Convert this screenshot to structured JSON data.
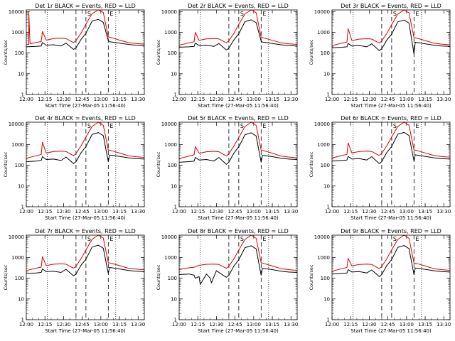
{
  "colors": {
    "events": "#000000",
    "lld": "#dd0000",
    "background": "#ffffff",
    "axis": "#000000"
  },
  "shared": {
    "ylabel": "Counts/sec",
    "xlabel": "Start Time (27-Mar-05 11:56:40)",
    "title_suffix": "BLACK = Events, RED = LLD",
    "x_ticks": [
      "12:00",
      "12:15",
      "12:30",
      "12:45",
      "13:00",
      "13:15",
      "13:30"
    ],
    "y_ticks": [
      "1",
      "10",
      "100",
      "1000",
      "10000"
    ],
    "markers": [
      {
        "label": "S",
        "time": "12:48",
        "style": "dashed"
      },
      {
        "label": "E",
        "time": "13:06",
        "style": "dashed"
      }
    ],
    "dashed_line_time": "12:40",
    "dotted_line_times": [
      "12:17",
      "13:12"
    ]
  },
  "chart_data": [
    {
      "type": "line",
      "title": "Det 1r BLACK = Events, RED = LLD",
      "xlim": [
        "12:00",
        "13:35"
      ],
      "ylim": [
        1,
        12000
      ],
      "yscale": "log",
      "series": [
        {
          "name": "Events",
          "x": [
            "12:00",
            "12:08",
            "12:12",
            "12:13",
            "12:16",
            "12:22",
            "12:28",
            "12:32",
            "12:38",
            "12:40",
            "12:44",
            "12:48",
            "12:53",
            "12:58",
            "13:02",
            "13:06",
            "13:07",
            "13:10",
            "13:15",
            "13:22",
            "13:28",
            "13:35"
          ],
          "values": [
            200,
            210,
            220,
            320,
            240,
            250,
            220,
            300,
            150,
            180,
            450,
            900,
            3500,
            4200,
            3000,
            400,
            350,
            330,
            300,
            260,
            240,
            230
          ]
        },
        {
          "name": "LLD",
          "x": [
            "12:00",
            "12:02",
            "12:02",
            "12:03",
            "12:08",
            "12:12",
            "12:13",
            "12:16",
            "12:22",
            "12:28",
            "12:32",
            "12:38",
            "12:40",
            "12:44",
            "12:48",
            "12:53",
            "12:58",
            "13:02",
            "13:06",
            "13:10",
            "13:15",
            "13:22",
            "13:28",
            "13:35"
          ],
          "values": [
            250,
            260,
            10000,
            280,
            320,
            360,
            1100,
            420,
            500,
            520,
            500,
            320,
            400,
            900,
            2500,
            8000,
            12000,
            9000,
            600,
            520,
            420,
            320,
            290,
            270
          ]
        }
      ]
    },
    {
      "type": "line",
      "title": "Det 2r BLACK = Events, RED = LLD",
      "xlim": [
        "12:00",
        "13:35"
      ],
      "ylim": [
        1,
        12000
      ],
      "yscale": "log",
      "series": [
        {
          "name": "Events",
          "x": [
            "12:00",
            "12:08",
            "12:12",
            "12:13",
            "12:16",
            "12:22",
            "12:28",
            "12:32",
            "12:38",
            "12:40",
            "12:44",
            "12:48",
            "12:53",
            "12:58",
            "13:02",
            "13:06",
            "13:07",
            "13:10",
            "13:15",
            "13:22",
            "13:28",
            "13:35"
          ],
          "values": [
            190,
            200,
            210,
            300,
            230,
            240,
            210,
            290,
            140,
            170,
            430,
            850,
            3300,
            4000,
            2900,
            380,
            340,
            320,
            290,
            250,
            230,
            220
          ]
        },
        {
          "name": "LLD",
          "x": [
            "12:00",
            "12:08",
            "12:12",
            "12:13",
            "12:16",
            "12:22",
            "12:28",
            "12:32",
            "12:38",
            "12:40",
            "12:44",
            "12:48",
            "12:53",
            "12:58",
            "13:02",
            "13:06",
            "13:10",
            "13:15",
            "13:22",
            "13:28",
            "13:35"
          ],
          "values": [
            240,
            310,
            350,
            1000,
            410,
            480,
            500,
            480,
            310,
            390,
            880,
            2400,
            7800,
            12000,
            8800,
            580,
            500,
            410,
            310,
            280,
            260
          ]
        }
      ]
    },
    {
      "type": "line",
      "title": "Det 3r BLACK = Events, RED = LLD",
      "xlim": [
        "12:00",
        "13:35"
      ],
      "ylim": [
        1,
        12000
      ],
      "yscale": "log",
      "series": [
        {
          "name": "Events",
          "x": [
            "12:00",
            "12:08",
            "12:12",
            "12:13",
            "12:16",
            "12:22",
            "12:28",
            "12:32",
            "12:38",
            "12:40",
            "12:44",
            "12:48",
            "12:53",
            "12:58",
            "13:02",
            "13:06",
            "13:07",
            "13:10",
            "13:15",
            "13:22",
            "13:28",
            "13:35"
          ],
          "values": [
            180,
            190,
            200,
            290,
            220,
            230,
            200,
            280,
            130,
            160,
            420,
            820,
            3200,
            3900,
            2800,
            90,
            330,
            310,
            280,
            240,
            220,
            210
          ]
        },
        {
          "name": "LLD",
          "x": [
            "12:00",
            "12:08",
            "12:12",
            "12:13",
            "12:16",
            "12:22",
            "12:28",
            "12:32",
            "12:38",
            "12:40",
            "12:44",
            "12:48",
            "12:53",
            "12:58",
            "13:02",
            "13:06",
            "13:10",
            "13:15",
            "13:22",
            "13:28",
            "13:35"
          ],
          "values": [
            230,
            300,
            340,
            1500,
            400,
            470,
            490,
            470,
            300,
            380,
            860,
            2300,
            7600,
            12000,
            8600,
            560,
            490,
            400,
            300,
            270,
            250
          ]
        }
      ]
    },
    {
      "type": "line",
      "title": "Det 4r BLACK = Events, RED = LLD",
      "xlim": [
        "12:00",
        "13:35"
      ],
      "ylim": [
        1,
        12000
      ],
      "yscale": "log",
      "series": [
        {
          "name": "Events",
          "x": [
            "12:00",
            "12:08",
            "12:12",
            "12:13",
            "12:16",
            "12:22",
            "12:28",
            "12:32",
            "12:38",
            "12:40",
            "12:44",
            "12:48",
            "12:53",
            "12:58",
            "13:02",
            "13:06",
            "13:07",
            "13:10",
            "13:15",
            "13:22",
            "13:28",
            "13:35"
          ],
          "values": [
            150,
            160,
            170,
            260,
            190,
            200,
            170,
            250,
            120,
            150,
            400,
            800,
            3100,
            3800,
            2700,
            150,
            310,
            300,
            270,
            230,
            210,
            200
          ]
        },
        {
          "name": "LLD",
          "x": [
            "12:00",
            "12:08",
            "12:12",
            "12:13",
            "12:16",
            "12:22",
            "12:28",
            "12:32",
            "12:38",
            "12:40",
            "12:44",
            "12:48",
            "12:53",
            "12:58",
            "13:02",
            "13:06",
            "13:10",
            "13:15",
            "13:22",
            "13:28",
            "13:35"
          ],
          "values": [
            220,
            290,
            330,
            1300,
            390,
            460,
            480,
            460,
            290,
            370,
            850,
            2300,
            7500,
            12000,
            8500,
            550,
            480,
            390,
            290,
            260,
            240
          ]
        }
      ]
    },
    {
      "type": "line",
      "title": "Det 5r BLACK = Events, RED = LLD",
      "xlim": [
        "12:00",
        "13:35"
      ],
      "ylim": [
        1,
        12000
      ],
      "yscale": "log",
      "series": [
        {
          "name": "Events",
          "x": [
            "12:00",
            "12:08",
            "12:12",
            "12:13",
            "12:16",
            "12:22",
            "12:28",
            "12:32",
            "12:38",
            "12:40",
            "12:44",
            "12:48",
            "12:53",
            "12:58",
            "13:02",
            "13:06",
            "13:07",
            "13:10",
            "13:15",
            "13:22",
            "13:28",
            "13:35"
          ],
          "values": [
            140,
            150,
            160,
            240,
            180,
            190,
            160,
            240,
            110,
            140,
            380,
            780,
            3000,
            3700,
            2600,
            140,
            300,
            290,
            260,
            220,
            200,
            190
          ]
        },
        {
          "name": "LLD",
          "x": [
            "12:00",
            "12:08",
            "12:12",
            "12:13",
            "12:16",
            "12:22",
            "12:28",
            "12:32",
            "12:38",
            "12:40",
            "12:44",
            "12:48",
            "12:53",
            "12:58",
            "13:02",
            "13:06",
            "13:10",
            "13:15",
            "13:22",
            "13:28",
            "13:35"
          ],
          "values": [
            210,
            280,
            320,
            800,
            380,
            450,
            470,
            450,
            280,
            360,
            840,
            2200,
            7400,
            12000,
            8400,
            540,
            470,
            380,
            280,
            250,
            230
          ]
        }
      ]
    },
    {
      "type": "line",
      "title": "Det 6r BLACK = Events, RED = LLD",
      "xlim": [
        "12:00",
        "13:35"
      ],
      "ylim": [
        1,
        12000
      ],
      "yscale": "log",
      "series": [
        {
          "name": "Events",
          "x": [
            "12:00",
            "12:08",
            "12:12",
            "12:13",
            "12:16",
            "12:22",
            "12:28",
            "12:32",
            "12:38",
            "12:40",
            "12:44",
            "12:48",
            "12:53",
            "12:58",
            "13:02",
            "13:06",
            "13:07",
            "13:10",
            "13:15",
            "13:22",
            "13:28",
            "13:35"
          ],
          "values": [
            160,
            170,
            180,
            270,
            200,
            210,
            180,
            260,
            120,
            150,
            410,
            810,
            3150,
            3850,
            2750,
            160,
            320,
            300,
            270,
            230,
            210,
            200
          ]
        },
        {
          "name": "LLD",
          "x": [
            "12:00",
            "12:08",
            "12:12",
            "12:13",
            "12:16",
            "12:22",
            "12:28",
            "12:32",
            "12:38",
            "12:40",
            "12:44",
            "12:48",
            "12:53",
            "12:58",
            "13:02",
            "13:06",
            "13:10",
            "13:15",
            "13:22",
            "13:28",
            "13:35"
          ],
          "values": [
            225,
            295,
            335,
            1200,
            395,
            465,
            485,
            465,
            295,
            375,
            855,
            2300,
            7550,
            12000,
            8550,
            555,
            485,
            395,
            295,
            265,
            245
          ]
        }
      ]
    },
    {
      "type": "line",
      "title": "Det 7r BLACK = Events, RED = LLD",
      "xlim": [
        "12:00",
        "13:35"
      ],
      "ylim": [
        1,
        12000
      ],
      "yscale": "log",
      "series": [
        {
          "name": "Events",
          "x": [
            "12:00",
            "12:08",
            "12:12",
            "12:13",
            "12:16",
            "12:22",
            "12:28",
            "12:32",
            "12:38",
            "12:40",
            "12:44",
            "12:48",
            "12:53",
            "12:58",
            "13:02",
            "13:06",
            "13:07",
            "13:10",
            "13:15",
            "13:22",
            "13:28",
            "13:35"
          ],
          "values": [
            170,
            180,
            190,
            280,
            210,
            220,
            190,
            270,
            130,
            160,
            420,
            830,
            3200,
            3950,
            2800,
            170,
            330,
            310,
            280,
            240,
            220,
            210
          ]
        },
        {
          "name": "LLD",
          "x": [
            "12:00",
            "12:08",
            "12:12",
            "12:13",
            "12:16",
            "12:22",
            "12:28",
            "12:32",
            "12:38",
            "12:40",
            "12:44",
            "12:48",
            "12:53",
            "12:58",
            "13:02",
            "13:06",
            "13:10",
            "13:15",
            "13:22",
            "13:28",
            "13:35"
          ],
          "values": [
            235,
            305,
            345,
            1100,
            405,
            475,
            495,
            475,
            305,
            385,
            865,
            2350,
            7650,
            12000,
            8650,
            565,
            495,
            405,
            305,
            275,
            255
          ]
        }
      ]
    },
    {
      "type": "line",
      "title": "Det 8r BLACK = Events, RED = LLD",
      "xlim": [
        "12:00",
        "13:35"
      ],
      "ylim": [
        1,
        12000
      ],
      "yscale": "log",
      "series": [
        {
          "name": "Events",
          "x": [
            "12:00",
            "12:08",
            "12:12",
            "12:13",
            "12:16",
            "12:17",
            "12:22",
            "12:25",
            "12:26",
            "12:30",
            "12:38",
            "12:40",
            "12:44",
            "12:48",
            "12:53",
            "12:58",
            "13:02",
            "13:06",
            "13:07",
            "13:10",
            "13:15",
            "13:22",
            "13:28",
            "13:35"
          ],
          "values": [
            150,
            160,
            140,
            100,
            120,
            50,
            160,
            100,
            60,
            230,
            110,
            140,
            380,
            780,
            3000,
            3700,
            2600,
            140,
            300,
            290,
            260,
            220,
            200,
            190
          ]
        },
        {
          "name": "LLD",
          "x": [
            "12:00",
            "12:08",
            "12:12",
            "12:16",
            "12:22",
            "12:28",
            "12:32",
            "12:38",
            "12:40",
            "12:44",
            "12:48",
            "12:53",
            "12:58",
            "13:02",
            "13:06",
            "13:10",
            "13:15",
            "13:22",
            "13:28",
            "13:35"
          ],
          "values": [
            260,
            320,
            340,
            420,
            470,
            480,
            460,
            300,
            380,
            850,
            2300,
            7500,
            12000,
            8500,
            560,
            480,
            390,
            290,
            260,
            240
          ]
        }
      ]
    },
    {
      "type": "line",
      "title": "Det 9r BLACK = Events, RED = LLD",
      "xlim": [
        "12:00",
        "13:35"
      ],
      "ylim": [
        1,
        12000
      ],
      "yscale": "log",
      "series": [
        {
          "name": "Events",
          "x": [
            "12:00",
            "12:08",
            "12:12",
            "12:13",
            "12:16",
            "12:22",
            "12:28",
            "12:32",
            "12:38",
            "12:40",
            "12:44",
            "12:48",
            "12:53",
            "12:58",
            "13:02",
            "13:06",
            "13:07",
            "13:10",
            "13:15",
            "13:22",
            "13:28",
            "13:35"
          ],
          "values": [
            160,
            170,
            180,
            260,
            200,
            210,
            180,
            250,
            120,
            150,
            400,
            800,
            3100,
            3800,
            2700,
            150,
            310,
            300,
            270,
            230,
            210,
            200
          ]
        },
        {
          "name": "LLD",
          "x": [
            "12:00",
            "12:08",
            "12:12",
            "12:13",
            "12:16",
            "12:22",
            "12:28",
            "12:32",
            "12:38",
            "12:40",
            "12:44",
            "12:48",
            "12:53",
            "12:58",
            "13:02",
            "13:06",
            "13:10",
            "13:15",
            "13:22",
            "13:28",
            "13:35"
          ],
          "values": [
            220,
            290,
            330,
            900,
            390,
            460,
            480,
            460,
            290,
            370,
            850,
            2300,
            7500,
            12000,
            8500,
            550,
            480,
            390,
            290,
            260,
            240
          ]
        }
      ]
    }
  ]
}
